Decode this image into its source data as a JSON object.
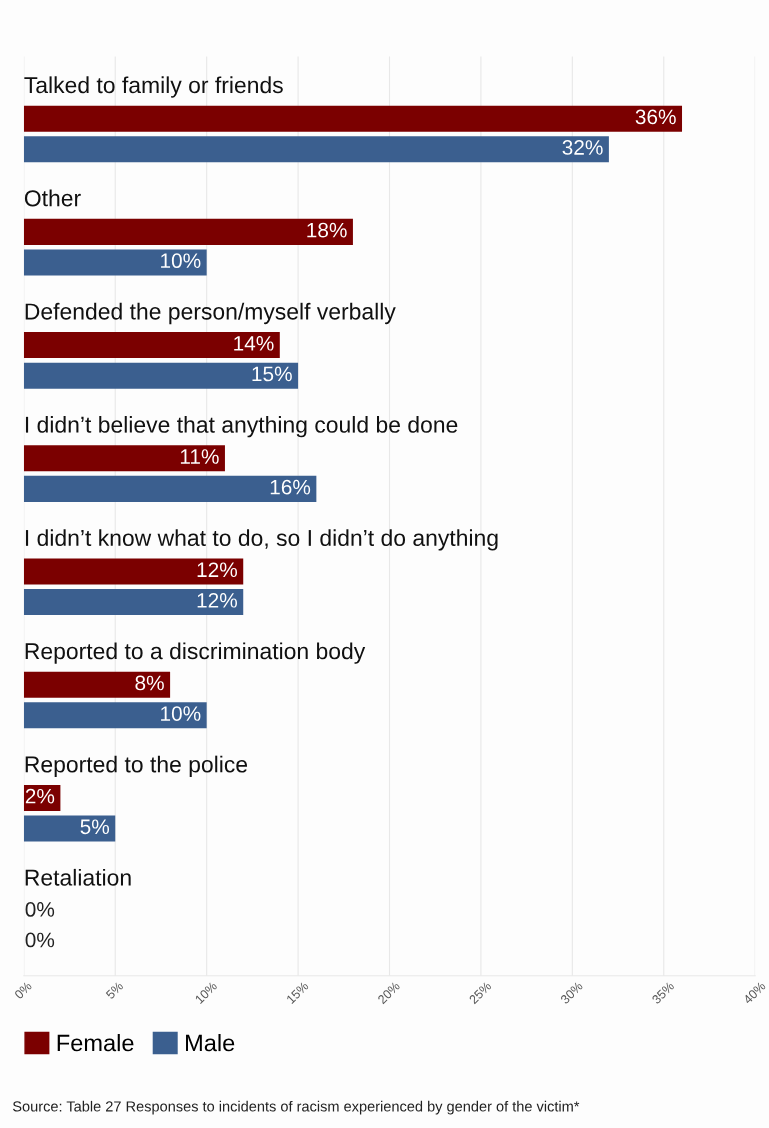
{
  "chart_data": {
    "type": "bar",
    "orientation": "horizontal",
    "categories": [
      "Talked to family or friends",
      "Other",
      "Defended the person/myself verbally",
      "I didn’t believe that anything could be done",
      "I didn’t know what to do, so I didn’t do anything",
      "Reported to a discrimination body",
      "Reported to the police",
      "Retaliation"
    ],
    "series": [
      {
        "name": "Female",
        "color": "#7b0000",
        "values": [
          36,
          18,
          14,
          11,
          12,
          8,
          2,
          0
        ],
        "value_labels": [
          "36%",
          "18%",
          "14%",
          "11%",
          "12%",
          "8%",
          "2%",
          "0%"
        ]
      },
      {
        "name": "Male",
        "color": "#3b5f8f",
        "values": [
          32,
          10,
          15,
          16,
          12,
          10,
          5,
          0
        ],
        "value_labels": [
          "32%",
          "10%",
          "15%",
          "16%",
          "12%",
          "10%",
          "5%",
          "0%"
        ]
      }
    ],
    "xlim": [
      0,
      40
    ],
    "xticks": [
      {
        "value": 0,
        "label": "0%"
      },
      {
        "value": 5,
        "label": "5%"
      },
      {
        "value": 10,
        "label": "10%"
      },
      {
        "value": 15,
        "label": "15%"
      },
      {
        "value": 20,
        "label": "20%"
      },
      {
        "value": 25,
        "label": "25%"
      },
      {
        "value": 30,
        "label": "30%"
      },
      {
        "value": 35,
        "label": "35%"
      },
      {
        "value": 40,
        "label": "40%"
      }
    ],
    "grid": "x",
    "legend": "bottom left",
    "annotations": [
      "Source: Table 27 Responses to incidents of racism experienced by gender of the victim*"
    ]
  }
}
